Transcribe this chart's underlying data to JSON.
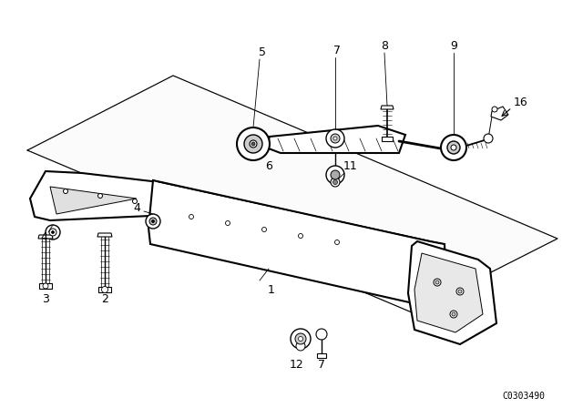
{
  "bg_color": "#ffffff",
  "line_color": "#000000",
  "watermark": "C0303490",
  "figsize": [
    6.4,
    4.48
  ],
  "dpi": 100
}
